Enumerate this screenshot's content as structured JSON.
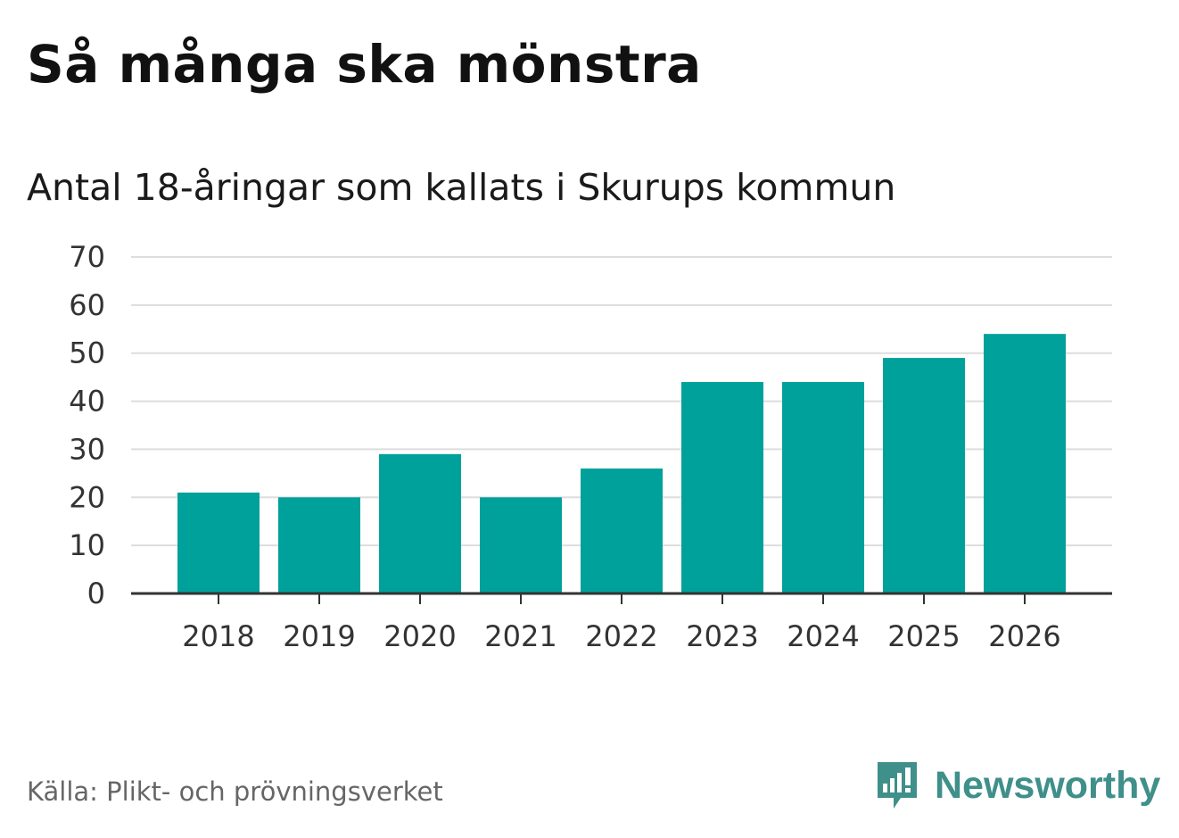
{
  "header": {
    "title": "Så många ska mönstra",
    "subtitle": "Antal 18-åringar som kallats i Skurups kommun"
  },
  "footer": {
    "source": "Källa: Plikt- och prövningsverket",
    "brand": "Newsworthy",
    "brand_icon": "bar-chart-speech-bubble-icon"
  },
  "colors": {
    "bar": "#00a19a",
    "grid": "#dddddd",
    "axis": "#333333",
    "brand": "#3f8f8a"
  },
  "chart_data": {
    "type": "bar",
    "title": "Så många ska mönstra",
    "subtitle": "Antal 18-åringar som kallats i Skurups kommun",
    "xlabel": "",
    "ylabel": "",
    "categories": [
      "2018",
      "2019",
      "2020",
      "2021",
      "2022",
      "2023",
      "2024",
      "2025",
      "2026"
    ],
    "values": [
      21,
      20,
      29,
      20,
      26,
      44,
      44,
      49,
      54
    ],
    "ylim": [
      0,
      70
    ],
    "yticks": [
      0,
      10,
      20,
      30,
      40,
      50,
      60,
      70
    ],
    "grid": true,
    "legend": "none"
  }
}
